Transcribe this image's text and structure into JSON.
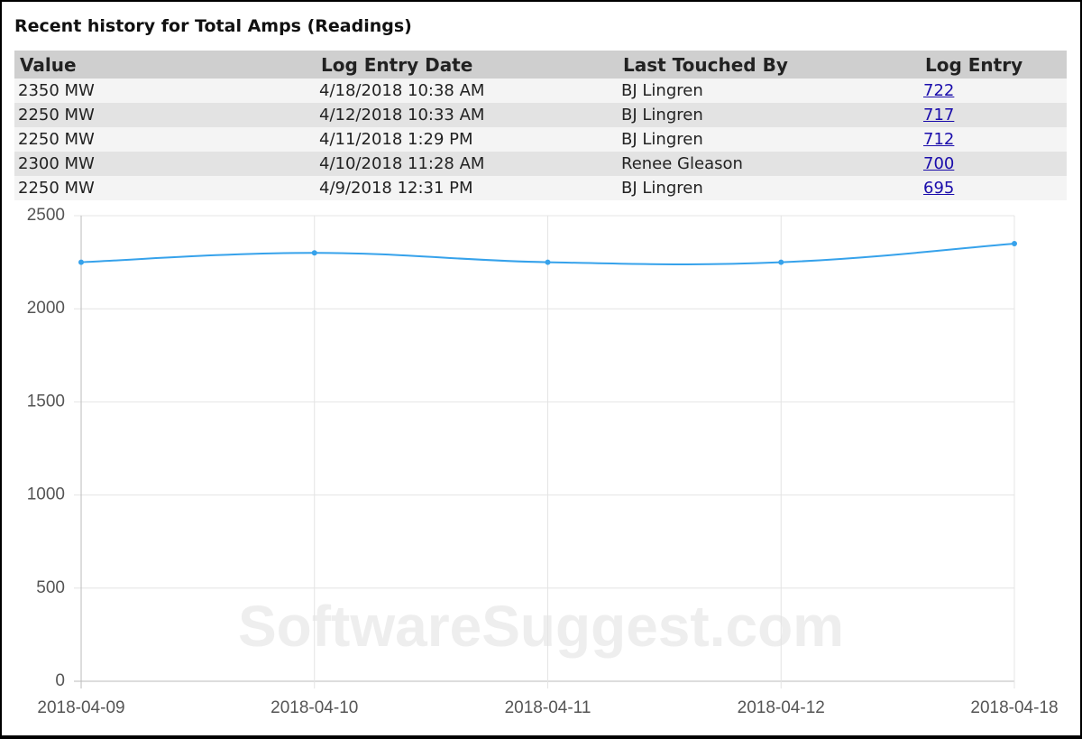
{
  "header": {
    "title": "Recent history for Total Amps (Readings)"
  },
  "table": {
    "columns": [
      "Value",
      "Log Entry Date",
      "Last Touched By",
      "Log Entry"
    ],
    "rows": [
      [
        "2350 MW",
        "4/18/2018 10:38 AM",
        "BJ Lingren",
        "722"
      ],
      [
        "2250 MW",
        "4/12/2018 10:33 AM",
        "BJ Lingren",
        "717"
      ],
      [
        "2250 MW",
        "4/11/2018 1:29 PM",
        "BJ Lingren",
        "712"
      ],
      [
        "2300 MW",
        "4/10/2018 11:28 AM",
        "Renee Gleason",
        "700"
      ],
      [
        "2250 MW",
        "4/9/2018 12:31 PM",
        "BJ Lingren",
        "695"
      ]
    ]
  },
  "chart_data": {
    "type": "line",
    "categories": [
      "2018-04-09",
      "2018-04-10",
      "2018-04-11",
      "2018-04-12",
      "2018-04-18"
    ],
    "values": [
      2250,
      2300,
      2250,
      2250,
      2350
    ],
    "color": "#36a2eb",
    "ylim": [
      0,
      2500
    ],
    "yticks": [
      0,
      500,
      1000,
      1500,
      2000,
      2500
    ],
    "grid": true
  },
  "watermark": "SoftwareSuggest.com"
}
